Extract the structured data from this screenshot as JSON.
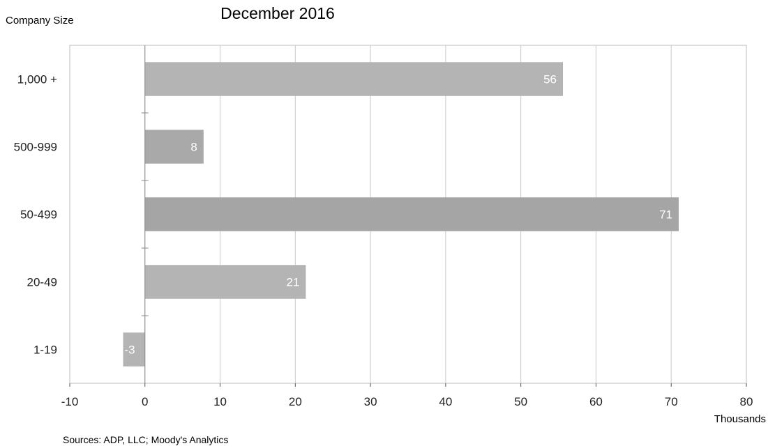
{
  "chart_data": {
    "type": "bar",
    "orientation": "horizontal",
    "title": "December 2016",
    "ylabel": "Company Size",
    "xlabel": "Thousands",
    "source": "Sources: ADP, LLC; Moody's Analytics",
    "categories": [
      "1,000 +",
      "500-999",
      "50-499",
      "20-49",
      "1-19"
    ],
    "values": [
      55.6,
      7.8,
      71,
      21.4,
      -2.9
    ],
    "data_labels": [
      "56",
      "8",
      "71",
      "21",
      "-3"
    ],
    "xlim": [
      -10,
      80
    ],
    "xticks": [
      -10,
      0,
      10,
      20,
      30,
      40,
      50,
      60,
      70,
      80
    ],
    "xtick_labels": [
      "-10",
      "0",
      "10",
      "20",
      "30",
      "40",
      "50",
      "60",
      "70",
      "80"
    ],
    "grid": "vertical",
    "legend": "none",
    "colors": {
      "bars": [
        "#b4b4b4",
        "#a9a9a9",
        "#a5a5a5",
        "#b4b4b4",
        "#b4b4b4"
      ],
      "gridline": "#c8c8c8",
      "frame": "#bcbcbc",
      "data_label": "#ffffff",
      "text": "#222222"
    }
  }
}
